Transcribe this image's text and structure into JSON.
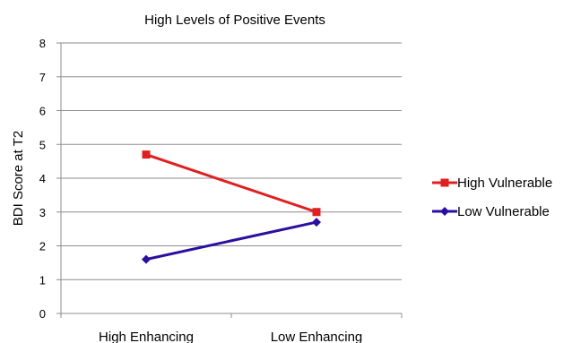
{
  "chart_data": {
    "type": "line",
    "title": "High Levels of Positive Events",
    "xlabel": "",
    "ylabel": "BDI Score at T2",
    "categories": [
      "High Enhancing",
      "Low Enhancing"
    ],
    "ylim": [
      0,
      8
    ],
    "yticks": [
      "0",
      "1",
      "2",
      "3",
      "4",
      "5",
      "6",
      "7",
      "8"
    ],
    "grid": true,
    "legend_position": "right",
    "series": [
      {
        "name": "High Vulnerable",
        "values": [
          4.7,
          3.0
        ],
        "color": "#e02020",
        "marker": "square"
      },
      {
        "name": "Low Vulnerable",
        "values": [
          1.6,
          2.7
        ],
        "color": "#2a0fa0",
        "marker": "diamond"
      }
    ]
  }
}
